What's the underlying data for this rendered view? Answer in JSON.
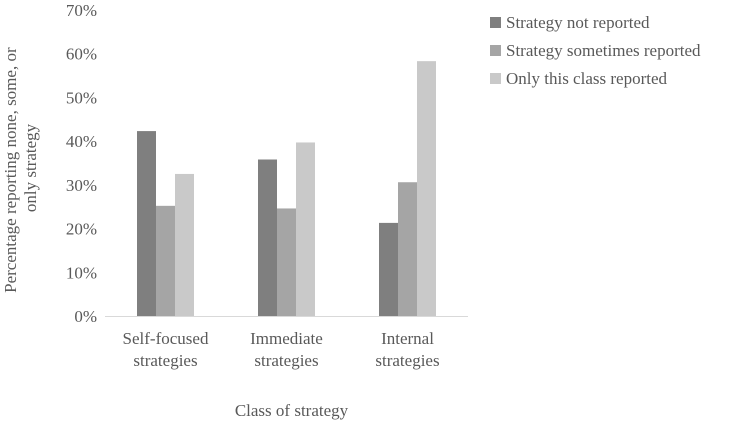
{
  "chart_data": {
    "type": "bar",
    "title": "",
    "xlabel": "Class of strategy",
    "ylabel_lines": [
      "Percentage reporting none, some, or",
      "only strategy"
    ],
    "categories": [
      [
        "Self-focused",
        "strategies"
      ],
      [
        "Immediate",
        "strategies"
      ],
      [
        "Internal",
        "strategies"
      ]
    ],
    "series": [
      {
        "name": "Strategy not reported",
        "color": "#7f7f7f",
        "values": [
          42.3,
          35.8,
          21.3
        ]
      },
      {
        "name": "Strategy sometimes reported",
        "color": "#a5a5a5",
        "values": [
          25.2,
          24.6,
          30.6
        ]
      },
      {
        "name": "Only this class reported",
        "color": "#c9c9c9",
        "values": [
          32.5,
          39.7,
          58.3
        ]
      }
    ],
    "ylim": [
      0,
      70
    ],
    "ytick_step": 10,
    "ytick_labels": [
      "0%",
      "10%",
      "20%",
      "30%",
      "40%",
      "50%",
      "60%",
      "70%"
    ],
    "grid": false,
    "legend_position": "top-right",
    "axis_color": "#d9d9d9"
  }
}
